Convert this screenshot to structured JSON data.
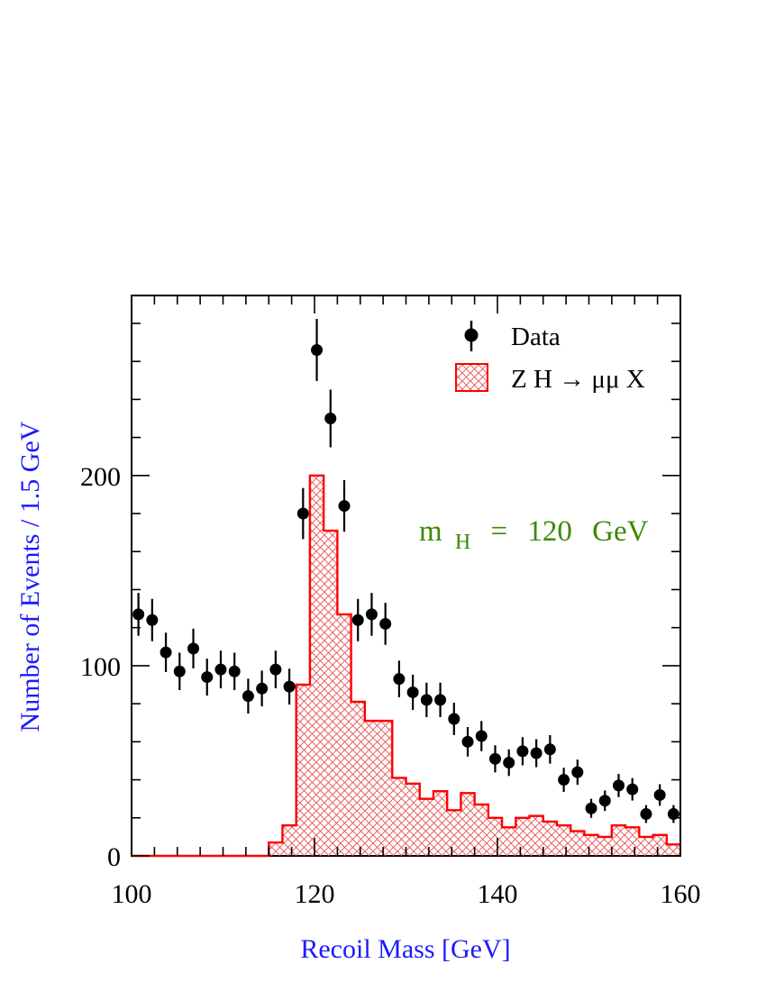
{
  "chart_data": {
    "type": "histogram",
    "xlabel": "Recoil Mass  [GeV]",
    "ylabel": "Number of Events / 1.5 GeV",
    "xlim": [
      100,
      160
    ],
    "ylim": [
      0,
      300
    ],
    "x_ticks": [
      100,
      120,
      140,
      160
    ],
    "y_ticks": [
      0,
      100,
      200
    ],
    "bin_width": 1.5,
    "grid": false,
    "legend_position": "top-right",
    "colors": {
      "data": "#000000",
      "signal_line": "#ff0000",
      "signal_hatch": "#e85050",
      "axis_title": "#1a1aff",
      "annotation": "#3a8a00"
    },
    "series": [
      {
        "name": "Data",
        "type": "points-with-errors",
        "x": [
          100.75,
          102.25,
          103.75,
          105.25,
          106.75,
          108.25,
          109.75,
          111.25,
          112.75,
          114.25,
          115.75,
          117.25,
          118.75,
          120.25,
          121.75,
          123.25,
          124.75,
          126.25,
          127.75,
          129.25,
          130.75,
          132.25,
          133.75,
          135.25,
          136.75,
          138.25,
          139.75,
          141.25,
          142.75,
          144.25,
          145.75,
          147.25,
          148.75,
          150.25,
          151.75,
          153.25,
          154.75,
          156.25,
          157.75,
          159.25
        ],
        "y": [
          127,
          124,
          107,
          97,
          109,
          94,
          98,
          97,
          84,
          88,
          98,
          89,
          180,
          266,
          230,
          184,
          124,
          127,
          122,
          93,
          86,
          82,
          82,
          72,
          60,
          63,
          51,
          49,
          55,
          54,
          56,
          40,
          44,
          25,
          29,
          37,
          35,
          22,
          32,
          22
        ]
      },
      {
        "name": "Z H → μμ X",
        "type": "hatched-histogram",
        "bin_lows": [
          100,
          101.5,
          103,
          104.5,
          106,
          107.5,
          109,
          110.5,
          112,
          113.5,
          115,
          116.5,
          118,
          119.5,
          121,
          122.5,
          124,
          125.5,
          127,
          128.5,
          130,
          131.5,
          133,
          134.5,
          136,
          137.5,
          139,
          140.5,
          142,
          143.5,
          145,
          146.5,
          148,
          149.5,
          151,
          152.5,
          154,
          155.5,
          157,
          158.5
        ],
        "values": [
          0,
          0,
          0,
          0,
          0,
          0,
          0,
          0,
          0,
          0,
          7,
          16,
          90,
          200,
          171,
          127,
          81,
          71,
          71,
          41,
          38,
          30,
          34,
          24,
          33,
          27,
          20,
          15,
          20,
          21,
          18,
          16,
          13,
          11,
          10,
          16,
          15,
          10,
          11,
          6
        ]
      }
    ],
    "legend": [
      {
        "label": "Data",
        "marker": "point-with-error"
      },
      {
        "label": "Z H → μμ X",
        "marker": "hatched-box"
      }
    ],
    "annotation": {
      "mass_symbol": "m",
      "mass_subscript": "H",
      "equals": "=",
      "value": "120",
      "unit": "GeV"
    }
  }
}
